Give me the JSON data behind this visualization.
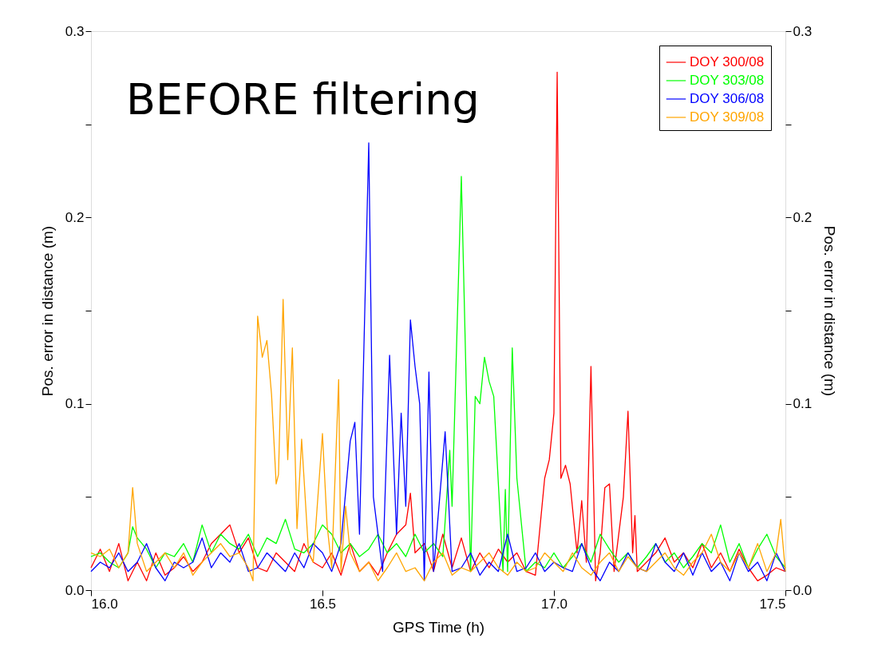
{
  "chart_data": {
    "type": "line",
    "xlabel": "GPS Time (h)",
    "ylabel": "Pos. error in distance (m)",
    "y2label": "Pos. error in distance (m)",
    "xlim": [
      16.0,
      17.5
    ],
    "xticks": [
      {
        "value": 16.0,
        "label": "16.0"
      },
      16.5,
      {
        "value": 17.0,
        "label": "17.0"
      },
      17.5
    ],
    "ylim": [
      0,
      0.3
    ],
    "yticks": [
      {
        "value": 0,
        "label": "0.0"
      },
      {
        "value": 0.05,
        "label": null
      },
      0.1,
      {
        "value": 0.15,
        "label": null
      },
      0.2,
      {
        "value": 0.25,
        "label": null
      },
      0.3
    ],
    "y2lim": [
      0,
      0.3
    ],
    "y2ticks": [
      {
        "value": 0,
        "label": "0.0"
      },
      {
        "value": 0.05,
        "label": null
      },
      0.1,
      {
        "value": 0.15,
        "label": null
      },
      0.2,
      {
        "value": 0.25,
        "label": null
      },
      0.3
    ],
    "grid": false,
    "legend": "top right",
    "marker": "none",
    "line_style": "solid",
    "annotations": [
      "BEFORE filtering"
    ],
    "series": [
      {
        "name": "DOY 300/08",
        "color": "#ff0000",
        "x": [
          16.0,
          16.02,
          16.04,
          16.06,
          16.08,
          16.1,
          16.12,
          16.14,
          16.16,
          16.18,
          16.2,
          16.22,
          16.24,
          16.26,
          16.28,
          16.3,
          16.32,
          16.34,
          16.36,
          16.38,
          16.4,
          16.42,
          16.44,
          16.46,
          16.48,
          16.5,
          16.52,
          16.54,
          16.56,
          16.58,
          16.6,
          16.62,
          16.64,
          16.66,
          16.68,
          16.69,
          16.7,
          16.72,
          16.74,
          16.76,
          16.78,
          16.8,
          16.82,
          16.84,
          16.86,
          16.88,
          16.9,
          16.92,
          16.94,
          16.96,
          16.98,
          16.99,
          17.0,
          17.007,
          17.015,
          17.025,
          17.035,
          17.045,
          17.05,
          17.06,
          17.07,
          17.08,
          17.09,
          17.1,
          17.11,
          17.12,
          17.13,
          17.15,
          17.16,
          17.17,
          17.175,
          17.18,
          17.2,
          17.22,
          17.24,
          17.26,
          17.28,
          17.3,
          17.32,
          17.34,
          17.36,
          17.38,
          17.4,
          17.42,
          17.44,
          17.46,
          17.48,
          17.5
        ],
        "values": [
          0.012,
          0.022,
          0.01,
          0.025,
          0.005,
          0.015,
          0.005,
          0.02,
          0.008,
          0.012,
          0.018,
          0.01,
          0.015,
          0.025,
          0.03,
          0.035,
          0.02,
          0.028,
          0.012,
          0.01,
          0.02,
          0.015,
          0.01,
          0.025,
          0.015,
          0.012,
          0.02,
          0.008,
          0.025,
          0.01,
          0.015,
          0.008,
          0.02,
          0.03,
          0.035,
          0.052,
          0.02,
          0.025,
          0.01,
          0.03,
          0.012,
          0.028,
          0.01,
          0.02,
          0.012,
          0.022,
          0.015,
          0.02,
          0.01,
          0.008,
          0.06,
          0.07,
          0.095,
          0.278,
          0.06,
          0.067,
          0.057,
          0.032,
          0.02,
          0.048,
          0.015,
          0.12,
          0.005,
          0.02,
          0.055,
          0.057,
          0.01,
          0.05,
          0.096,
          0.02,
          0.04,
          0.01,
          0.015,
          0.02,
          0.028,
          0.015,
          0.02,
          0.012,
          0.025,
          0.012,
          0.02,
          0.01,
          0.022,
          0.012,
          0.005,
          0.008,
          0.012,
          0.01
        ]
      },
      {
        "name": "DOY 303/08",
        "color": "#00ff00",
        "x": [
          16.0,
          16.02,
          16.04,
          16.06,
          16.08,
          16.09,
          16.1,
          16.12,
          16.14,
          16.16,
          16.18,
          16.2,
          16.22,
          16.24,
          16.26,
          16.28,
          16.3,
          16.32,
          16.34,
          16.36,
          16.38,
          16.4,
          16.42,
          16.44,
          16.46,
          16.48,
          16.5,
          16.52,
          16.54,
          16.56,
          16.58,
          16.6,
          16.62,
          16.64,
          16.66,
          16.68,
          16.7,
          16.72,
          16.74,
          16.76,
          16.775,
          16.78,
          16.8,
          16.82,
          16.83,
          16.84,
          16.85,
          16.86,
          16.87,
          16.89,
          16.895,
          16.9,
          16.91,
          16.92,
          16.94,
          16.96,
          16.98,
          17.0,
          17.02,
          17.04,
          17.06,
          17.08,
          17.1,
          17.12,
          17.14,
          17.16,
          17.18,
          17.2,
          17.22,
          17.24,
          17.26,
          17.28,
          17.3,
          17.32,
          17.34,
          17.36,
          17.38,
          17.4,
          17.42,
          17.44,
          17.46,
          17.48,
          17.5
        ],
        "values": [
          0.018,
          0.02,
          0.015,
          0.012,
          0.02,
          0.034,
          0.028,
          0.022,
          0.012,
          0.02,
          0.018,
          0.025,
          0.015,
          0.035,
          0.02,
          0.03,
          0.025,
          0.022,
          0.03,
          0.018,
          0.028,
          0.025,
          0.038,
          0.022,
          0.02,
          0.025,
          0.035,
          0.03,
          0.02,
          0.025,
          0.018,
          0.022,
          0.03,
          0.02,
          0.025,
          0.018,
          0.03,
          0.02,
          0.025,
          0.018,
          0.075,
          0.045,
          0.222,
          0.01,
          0.104,
          0.1,
          0.125,
          0.112,
          0.104,
          0.01,
          0.054,
          0.01,
          0.13,
          0.06,
          0.01,
          0.015,
          0.012,
          0.02,
          0.012,
          0.018,
          0.025,
          0.015,
          0.03,
          0.022,
          0.015,
          0.02,
          0.012,
          0.018,
          0.025,
          0.015,
          0.02,
          0.012,
          0.018,
          0.025,
          0.02,
          0.035,
          0.015,
          0.025,
          0.012,
          0.022,
          0.03,
          0.018,
          0.012
        ]
      },
      {
        "name": "DOY 306/08",
        "color": "#0000ff",
        "x": [
          16.0,
          16.02,
          16.04,
          16.06,
          16.08,
          16.1,
          16.12,
          16.14,
          16.16,
          16.18,
          16.2,
          16.22,
          16.24,
          16.26,
          16.28,
          16.3,
          16.32,
          16.34,
          16.36,
          16.38,
          16.4,
          16.42,
          16.44,
          16.46,
          16.48,
          16.5,
          16.52,
          16.54,
          16.56,
          16.57,
          16.58,
          16.6,
          16.61,
          16.63,
          16.645,
          16.66,
          16.67,
          16.68,
          16.69,
          16.7,
          16.71,
          16.72,
          16.73,
          16.74,
          16.765,
          16.78,
          16.8,
          16.82,
          16.84,
          16.86,
          16.88,
          16.9,
          16.92,
          16.94,
          16.96,
          16.98,
          17.0,
          17.02,
          17.04,
          17.06,
          17.08,
          17.1,
          17.12,
          17.14,
          17.16,
          17.18,
          17.2,
          17.22,
          17.24,
          17.26,
          17.28,
          17.3,
          17.32,
          17.34,
          17.36,
          17.38,
          17.4,
          17.42,
          17.44,
          17.46,
          17.48,
          17.5
        ],
        "values": [
          0.01,
          0.015,
          0.012,
          0.02,
          0.01,
          0.015,
          0.025,
          0.012,
          0.005,
          0.015,
          0.012,
          0.015,
          0.028,
          0.012,
          0.02,
          0.015,
          0.025,
          0.01,
          0.012,
          0.02,
          0.015,
          0.01,
          0.02,
          0.012,
          0.025,
          0.02,
          0.01,
          0.025,
          0.08,
          0.09,
          0.03,
          0.24,
          0.05,
          0.01,
          0.126,
          0.03,
          0.095,
          0.045,
          0.145,
          0.12,
          0.1,
          0.005,
          0.117,
          0.01,
          0.085,
          0.01,
          0.012,
          0.02,
          0.008,
          0.015,
          0.01,
          0.03,
          0.01,
          0.012,
          0.02,
          0.01,
          0.015,
          0.012,
          0.01,
          0.025,
          0.012,
          0.005,
          0.015,
          0.01,
          0.02,
          0.012,
          0.01,
          0.025,
          0.015,
          0.01,
          0.02,
          0.008,
          0.02,
          0.01,
          0.015,
          0.005,
          0.02,
          0.01,
          0.015,
          0.005,
          0.02,
          0.01
        ]
      },
      {
        "name": "DOY 309/08",
        "color": "#ffa500",
        "x": [
          16.0,
          16.02,
          16.04,
          16.06,
          16.08,
          16.09,
          16.1,
          16.12,
          16.14,
          16.16,
          16.18,
          16.2,
          16.22,
          16.24,
          16.26,
          16.28,
          16.3,
          16.32,
          16.34,
          16.35,
          16.36,
          16.37,
          16.38,
          16.39,
          16.4,
          16.405,
          16.415,
          16.425,
          16.435,
          16.445,
          16.455,
          16.47,
          16.48,
          16.5,
          16.51,
          16.52,
          16.535,
          16.54,
          16.55,
          16.56,
          16.58,
          16.6,
          16.62,
          16.64,
          16.66,
          16.68,
          16.7,
          16.72,
          16.74,
          16.76,
          16.78,
          16.8,
          16.82,
          16.84,
          16.86,
          16.88,
          16.9,
          16.92,
          16.94,
          16.96,
          16.98,
          17.0,
          17.02,
          17.04,
          17.06,
          17.08,
          17.1,
          17.12,
          17.14,
          17.16,
          17.18,
          17.2,
          17.22,
          17.24,
          17.26,
          17.28,
          17.3,
          17.32,
          17.34,
          17.36,
          17.38,
          17.4,
          17.42,
          17.44,
          17.46,
          17.48,
          17.49,
          17.5
        ],
        "values": [
          0.02,
          0.018,
          0.022,
          0.012,
          0.02,
          0.055,
          0.025,
          0.01,
          0.015,
          0.02,
          0.012,
          0.02,
          0.008,
          0.015,
          0.02,
          0.025,
          0.018,
          0.02,
          0.012,
          0.005,
          0.147,
          0.125,
          0.134,
          0.105,
          0.057,
          0.062,
          0.156,
          0.07,
          0.13,
          0.033,
          0.081,
          0.02,
          0.015,
          0.084,
          0.035,
          0.012,
          0.113,
          0.01,
          0.045,
          0.02,
          0.01,
          0.015,
          0.005,
          0.012,
          0.02,
          0.01,
          0.012,
          0.005,
          0.015,
          0.02,
          0.008,
          0.012,
          0.01,
          0.015,
          0.02,
          0.012,
          0.008,
          0.015,
          0.01,
          0.012,
          0.02,
          0.015,
          0.01,
          0.02,
          0.012,
          0.008,
          0.015,
          0.02,
          0.01,
          0.018,
          0.012,
          0.01,
          0.015,
          0.02,
          0.012,
          0.008,
          0.015,
          0.02,
          0.03,
          0.015,
          0.01,
          0.02,
          0.012,
          0.025,
          0.01,
          0.02,
          0.038,
          0.01
        ]
      }
    ]
  }
}
